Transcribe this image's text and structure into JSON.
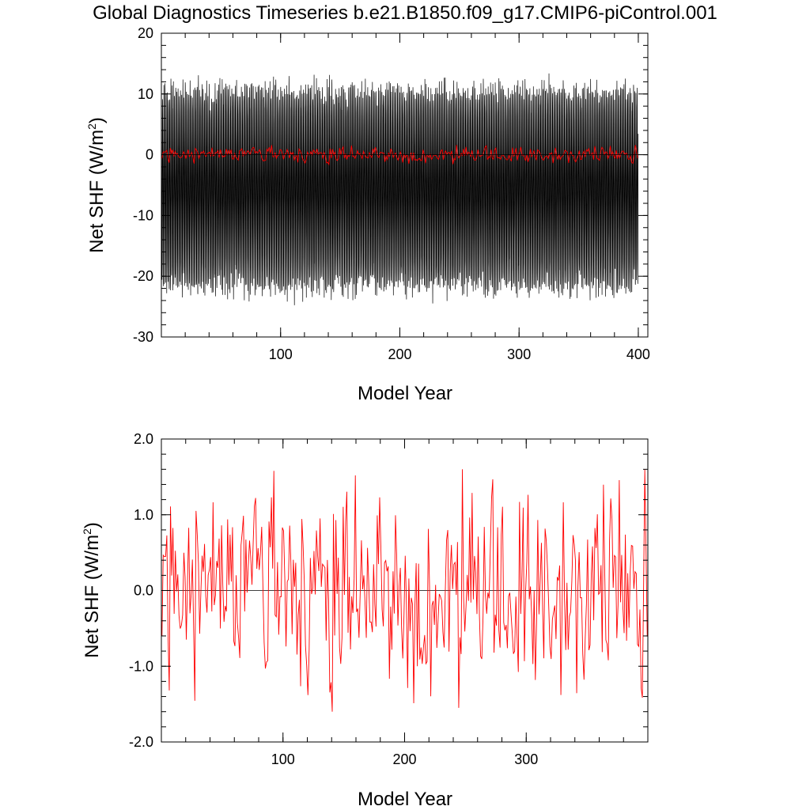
{
  "title": "Global Diagnostics Timeseries b.e21.B1850.f09_g17.CMIP6-piControl.001",
  "chart_data": [
    {
      "type": "line",
      "xlabel": "Model Year",
      "ylabel": "Net SHF (W/m",
      "ylabel_sup": "2",
      "ylabel_close": ")",
      "xlim": [
        0,
        408
      ],
      "ylim": [
        -30,
        20
      ],
      "xticks": [
        100,
        200,
        300,
        400
      ],
      "xtick_labels": [
        "100",
        "200",
        "300",
        "400"
      ],
      "yticks": [
        -30,
        -20,
        -10,
        0,
        10,
        20
      ],
      "ytick_labels": [
        "-30",
        "-20",
        "-10",
        "0",
        "10",
        "20"
      ],
      "grid": false,
      "series": [
        {
          "kind": "monthly",
          "color": "#000000",
          "x_range": [
            0,
            400
          ],
          "seasonal_max_approx": 10.5,
          "seasonal_min_approx": -21.5,
          "overall_max": 18,
          "overall_min": -26
        },
        {
          "kind": "annual",
          "color": "#ff0000",
          "x_range": [
            0,
            400
          ],
          "y_range": [
            -1.6,
            1.6
          ]
        }
      ]
    },
    {
      "type": "line",
      "xlabel": "Model Year",
      "ylabel": "Net SHF (W/m",
      "ylabel_sup": "2",
      "ylabel_close": ")",
      "xlim": [
        0,
        400
      ],
      "ylim": [
        -2.0,
        2.0
      ],
      "xticks": [
        100,
        200,
        300
      ],
      "xtick_labels": [
        "100",
        "200",
        "300"
      ],
      "yticks": [
        -2.0,
        -1.0,
        0.0,
        1.0,
        2.0
      ],
      "ytick_labels": [
        "-2.0",
        "-1.0",
        "0.0",
        "1.0",
        "2.0"
      ],
      "grid": false,
      "series": [
        {
          "kind": "annual",
          "color": "#ff0000",
          "x_range": [
            0,
            400
          ],
          "y_range": [
            -1.6,
            1.6
          ],
          "notable_points": [
            {
              "x": 1,
              "y": -0.6
            },
            {
              "x": 7,
              "y": -1.32
            },
            {
              "x": 93,
              "y": 1.58
            },
            {
              "x": 141,
              "y": -1.6
            },
            {
              "x": 160,
              "y": 1.52
            },
            {
              "x": 245,
              "y": -1.55
            },
            {
              "x": 248,
              "y": 1.6
            },
            {
              "x": 398,
              "y": 1.6
            }
          ]
        }
      ]
    }
  ]
}
